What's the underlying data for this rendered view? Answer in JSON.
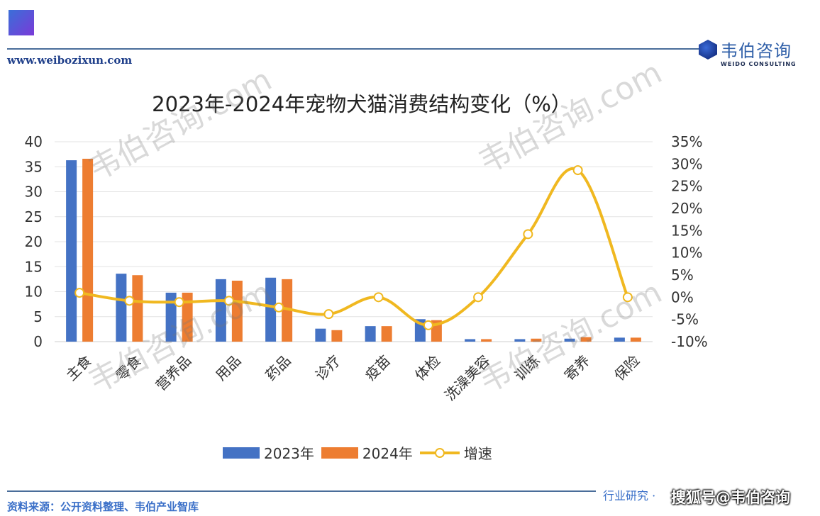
{
  "header": {
    "url": "www.weibozixun.com",
    "logo_cn": "韦伯咨询",
    "logo_en": "WEIDO CONSULTING"
  },
  "watermark": "韦伯咨询.com",
  "footer": {
    "source": "资料来源：公开资料整理、韦伯产业智库",
    "right_text": "行业研究 · ",
    "sohu": "搜狐号@韦伯咨询"
  },
  "colors": {
    "s2023": "#4472C4",
    "s2024": "#ED7D31",
    "growth": "#F0B820"
  },
  "chart_data": {
    "type": "bar",
    "title": "2023年-2024年宠物犬猫消费结构变化（%）",
    "categories": [
      "主食",
      "零食",
      "营养品",
      "用品",
      "药品",
      "诊疗",
      "疫苗",
      "体检",
      "洗澡美容",
      "训练",
      "寄养",
      "保险"
    ],
    "series": [
      {
        "name": "2023年",
        "type": "bar",
        "axis": "left",
        "values": [
          36.3,
          13.6,
          9.8,
          12.5,
          12.8,
          2.6,
          3.1,
          4.5,
          0.5,
          0.5,
          0.6,
          0.8
        ]
      },
      {
        "name": "2024年",
        "type": "bar",
        "axis": "left",
        "values": [
          36.6,
          13.3,
          9.8,
          12.2,
          12.5,
          2.3,
          3.1,
          4.3,
          0.5,
          0.6,
          0.9,
          0.8
        ]
      },
      {
        "name": "增速",
        "type": "line",
        "axis": "right",
        "unit": "%",
        "values": [
          1.0,
          -0.8,
          -1.1,
          -0.8,
          -2.3,
          -3.8,
          0.0,
          -6.3,
          0.0,
          14.2,
          28.6,
          0.0
        ]
      }
    ],
    "ylim_left": [
      0,
      40
    ],
    "yticks_left": [
      "0",
      "5",
      "10",
      "15",
      "20",
      "25",
      "30",
      "35",
      "40"
    ],
    "ylim_right": [
      -10,
      35
    ],
    "yticks_right": [
      "-10%",
      "-5%",
      "0%",
      "5%",
      "10%",
      "15%",
      "20%",
      "25%",
      "30%",
      "35%"
    ],
    "grid": true,
    "legend": "bottom"
  }
}
